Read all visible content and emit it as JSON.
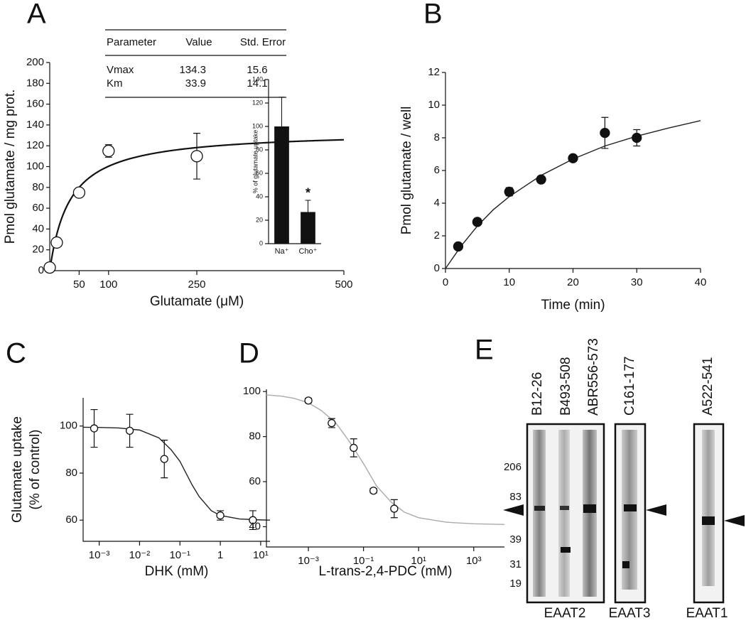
{
  "chart_data": [
    {
      "label": "A",
      "type": "scatter",
      "marker": "open",
      "fit": "michaelis-menten",
      "x": [
        0,
        12,
        50,
        100,
        250
      ],
      "values": [
        3,
        27,
        75,
        115,
        110
      ],
      "errors": [
        null,
        null,
        4,
        6,
        22
      ],
      "xlim": [
        0,
        500
      ],
      "xticks": [
        50,
        100,
        250,
        500
      ],
      "ylim": [
        0,
        200
      ],
      "yticks": [
        0,
        20,
        40,
        60,
        80,
        100,
        120,
        140,
        160,
        180,
        200
      ],
      "xlabel": "Glutamate (μM)",
      "ylabel": "Pmol glutamate / mg prot.",
      "table": {
        "columns": [
          "Parameter",
          "Value",
          "Std. Error"
        ],
        "rows": [
          [
            "Vmax",
            134.3,
            15.6
          ],
          [
            "Km",
            33.9,
            14.1
          ]
        ]
      }
    },
    {
      "type": "bar",
      "categories": [
        "Na⁺",
        "Cho⁺"
      ],
      "values": [
        100,
        27
      ],
      "errors": [
        25,
        10
      ],
      "color": "#111111",
      "ylim": [
        0,
        140
      ],
      "yticks": [
        0,
        20,
        40,
        60,
        80,
        100,
        120,
        140
      ],
      "ylabel": "% of glutamate uptake",
      "annotations": [
        {
          "text": "*",
          "category": "Cho⁺"
        }
      ]
    },
    {
      "label": "B",
      "type": "scatter",
      "marker": "filled",
      "x": [
        2,
        5,
        10,
        15,
        20,
        25,
        30
      ],
      "values": [
        1.35,
        2.85,
        4.7,
        5.45,
        6.75,
        8.3,
        8.0
      ],
      "errors": [
        0.1,
        0.1,
        0.25,
        0.2,
        0.15,
        0.95,
        0.5
      ],
      "curve": {
        "color": "#222222",
        "x": [
          0,
          2.5,
          5,
          7.5,
          10,
          15,
          20,
          25,
          30,
          35,
          40
        ],
        "values": [
          0,
          1.4,
          2.6,
          3.6,
          4.4,
          5.7,
          6.7,
          7.5,
          8.1,
          8.6,
          9.05
        ]
      },
      "xlim": [
        0,
        40
      ],
      "xticks": [
        0,
        10,
        20,
        30,
        40
      ],
      "ylim": [
        0,
        12
      ],
      "yticks": [
        0,
        2,
        4,
        6,
        8,
        10,
        12
      ],
      "xlabel": "Time (min)",
      "ylabel": "Pmol glutamate / well"
    },
    {
      "label": "C",
      "type": "scatter",
      "marker": "open",
      "xscale": "log",
      "x": [
        0.00075,
        0.0057,
        0.041,
        1,
        6.4
      ],
      "values": [
        99,
        98,
        86,
        62,
        60
      ],
      "errors": [
        8,
        7,
        8,
        2,
        4
      ],
      "curve": {
        "color": "#222222",
        "x": [
          0.0004,
          0.001,
          0.003,
          0.01,
          0.03,
          0.06,
          0.1,
          0.2,
          0.3,
          0.6,
          1,
          3,
          10,
          17
        ],
        "values": [
          99.5,
          99.4,
          99.2,
          98.3,
          95,
          90,
          85,
          75,
          70,
          64,
          62,
          60.5,
          60.1,
          60
        ]
      },
      "xlim": [
        0.0004,
        17
      ],
      "xticks": [
        {
          "value": 0.001,
          "label": "10⁻³"
        },
        {
          "value": 0.01,
          "label": "10⁻²"
        },
        {
          "value": 0.1,
          "label": "10⁻¹"
        },
        1,
        {
          "value": 10,
          "label": "10¹"
        }
      ],
      "ylim": [
        51,
        112
      ],
      "yticks": [
        60,
        80,
        100
      ],
      "xlabel": "DHK (mM)",
      "ylabel": [
        "Glutamate uptake",
        "(% of control)"
      ]
    },
    {
      "label": "D",
      "type": "scatter",
      "marker": "open",
      "xscale": "log",
      "x": [
        0.001,
        0.007,
        0.044,
        0.23,
        1.3
      ],
      "values": [
        96,
        86,
        75,
        56,
        48
      ],
      "errors": [
        1,
        2,
        4,
        1,
        4
      ],
      "curve": {
        "color": "#aaaaaa",
        "x": [
          3e-05,
          0.0001,
          0.0003,
          0.001,
          0.003,
          0.01,
          0.03,
          0.1,
          0.3,
          1,
          3,
          10,
          100,
          1000,
          13000
        ],
        "values": [
          98.5,
          98,
          97,
          95,
          91.5,
          86,
          78,
          68,
          58,
          51,
          46.5,
          44,
          42,
          41.3,
          41
        ]
      },
      "xlim": [
        3e-05,
        13000
      ],
      "xticks": [
        {
          "value": 0.001,
          "label": "10⁻³"
        },
        {
          "value": 0.1,
          "label": "10⁻¹"
        },
        {
          "value": 10,
          "label": "10¹"
        },
        {
          "value": 1000,
          "label": "10³"
        }
      ],
      "ylim": [
        31,
        101
      ],
      "yticks": [
        40,
        60,
        80,
        100
      ],
      "xlabel": "L-trans-2,4-PDC (mM)"
    }
  ],
  "blot": {
    "label": "E",
    "lanes": [
      "B12-26",
      "B493-508",
      "ABR556-573",
      "C161-177",
      "A522-541"
    ],
    "markers": [
      206,
      83,
      39,
      31,
      19
    ],
    "groups": [
      "EAAT2",
      "EAAT3",
      "EAAT1"
    ]
  }
}
